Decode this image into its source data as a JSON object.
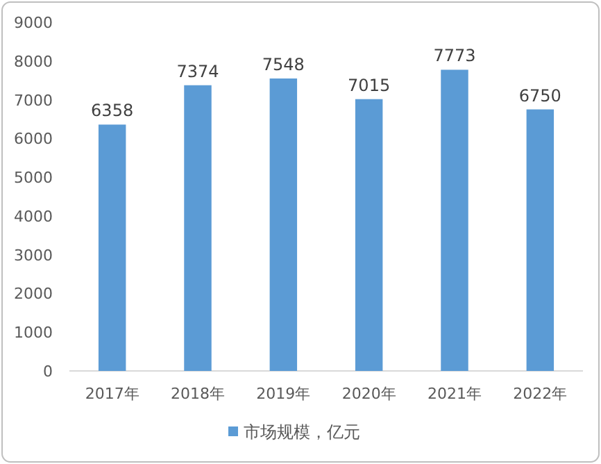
{
  "chart_data": {
    "type": "bar",
    "categories": [
      "2017年",
      "2018年",
      "2019年",
      "2020年",
      "2021年",
      "2022年"
    ],
    "series": [
      {
        "name": "市场规模，亿元",
        "color": "#5b9bd5",
        "values": [
          6358,
          7374,
          7548,
          7015,
          7773,
          6750
        ]
      }
    ],
    "ylim": [
      0,
      9000
    ],
    "yticks": [
      0,
      1000,
      2000,
      3000,
      4000,
      5000,
      6000,
      7000,
      8000,
      9000
    ],
    "data_labels": true,
    "legend": "bottom",
    "grid": false
  }
}
